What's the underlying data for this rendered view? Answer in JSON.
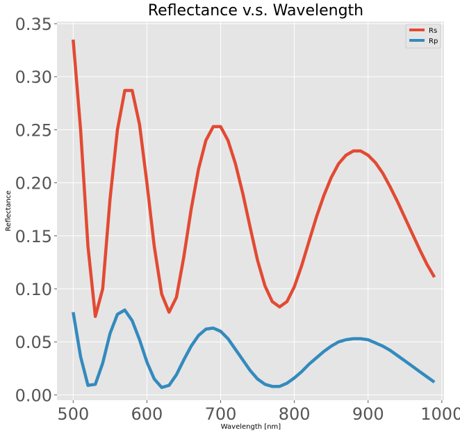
{
  "chart_data": {
    "type": "line",
    "title": "Reflectance v.s. Wavelength",
    "xlabel": "Wavelength [nm]",
    "ylabel": "Reflectance",
    "xlim": [
      478,
      1003
    ],
    "ylim": [
      -0.005,
      0.352
    ],
    "xticks": [
      500,
      600,
      700,
      800,
      900,
      1000
    ],
    "xtick_labels": [
      "500",
      "600",
      "700",
      "800",
      "900",
      "1000"
    ],
    "yticks": [
      0.0,
      0.05,
      0.1,
      0.15,
      0.2,
      0.25,
      0.3,
      0.35
    ],
    "ytick_labels": [
      "0.00",
      "0.05",
      "0.10",
      "0.15",
      "0.20",
      "0.25",
      "0.30",
      "0.35"
    ],
    "grid": true,
    "legend_position": "top-right",
    "x": [
      500,
      510,
      520,
      530,
      540,
      550,
      560,
      570,
      580,
      590,
      600,
      610,
      620,
      630,
      640,
      650,
      660,
      670,
      680,
      690,
      700,
      710,
      720,
      730,
      740,
      750,
      760,
      770,
      780,
      790,
      800,
      810,
      820,
      830,
      840,
      850,
      860,
      870,
      880,
      890,
      900,
      910,
      920,
      930,
      940,
      950,
      960,
      970,
      980,
      990
    ],
    "series": [
      {
        "name": "Rs",
        "color": "#E24A33",
        "values": [
          0.335,
          0.25,
          0.14,
          0.074,
          0.1,
          0.185,
          0.25,
          0.287,
          0.287,
          0.255,
          0.2,
          0.14,
          0.095,
          0.078,
          0.092,
          0.13,
          0.175,
          0.213,
          0.24,
          0.253,
          0.253,
          0.24,
          0.218,
          0.19,
          0.158,
          0.127,
          0.103,
          0.088,
          0.083,
          0.088,
          0.102,
          0.122,
          0.145,
          0.168,
          0.188,
          0.205,
          0.218,
          0.226,
          0.23,
          0.23,
          0.226,
          0.219,
          0.209,
          0.196,
          0.182,
          0.167,
          0.152,
          0.137,
          0.123,
          0.111
        ]
      },
      {
        "name": "Rp",
        "color": "#348ABD",
        "values": [
          0.078,
          0.036,
          0.009,
          0.01,
          0.03,
          0.058,
          0.076,
          0.08,
          0.07,
          0.052,
          0.031,
          0.015,
          0.007,
          0.009,
          0.019,
          0.033,
          0.046,
          0.056,
          0.062,
          0.063,
          0.06,
          0.053,
          0.043,
          0.033,
          0.023,
          0.015,
          0.01,
          0.008,
          0.008,
          0.011,
          0.016,
          0.022,
          0.029,
          0.035,
          0.041,
          0.046,
          0.05,
          0.052,
          0.053,
          0.053,
          0.052,
          0.049,
          0.046,
          0.042,
          0.037,
          0.032,
          0.027,
          0.022,
          0.017,
          0.012
        ]
      }
    ]
  }
}
